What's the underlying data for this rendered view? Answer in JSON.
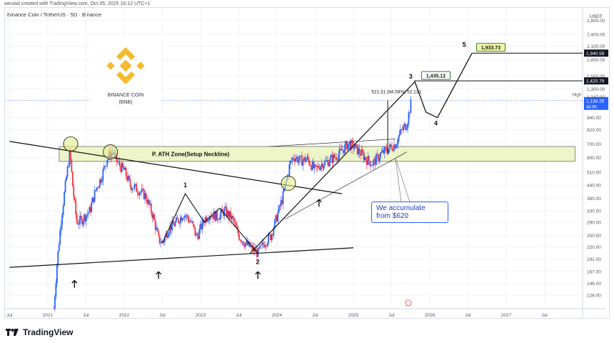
{
  "header": {
    "author_line": "wesiad created with TradingView.com, Oct 05, 2025 16:12 UTC+1",
    "symbol_line": "Binance Coin / TetherUS · 5D · Binance"
  },
  "brand": {
    "name": "TradingView"
  },
  "logo": {
    "name_line1": "BINANCE COIN",
    "name_line2": "(BNB)",
    "color": "#F3BA2F"
  },
  "chart_data": {
    "type": "candlestick",
    "symbol": "Binance Coin / TetherUS",
    "interval": "5D",
    "exchange": "Binance",
    "currency": "USDT",
    "y_scale": "log",
    "ylim": [
      110,
      3200
    ],
    "y_ticks": [
      128,
      146,
      167,
      192,
      220,
      250,
      290,
      330,
      380,
      440,
      510,
      600,
      700,
      820,
      940,
      1147.02,
      1300,
      1500,
      1800,
      2100,
      2400,
      2800
    ],
    "y_tick_labels": [
      "128.00",
      "146.00",
      "167.00",
      "192.00",
      "220.00",
      "250.00",
      "290.00",
      "330.00",
      "380.00",
      "440.00",
      "510.00",
      "600.00",
      "700.00",
      "820.00",
      "940.00",
      "1,147.02",
      "1,300.00",
      "1,500.00",
      "1,800.00",
      "2,100.00",
      "2,400.00",
      "2,800.00"
    ],
    "x_ticks": [
      "Jul",
      "2021",
      "Jul",
      "2022",
      "Jul",
      "2023",
      "Jul",
      "2024",
      "Jul",
      "2025",
      "Jul",
      "2026",
      "Jul",
      "2027",
      "Jul"
    ],
    "x_tick_values": [
      2020.5,
      2021,
      2021.5,
      2022,
      2022.5,
      2023,
      2023.5,
      2024,
      2024.5,
      2025,
      2025.5,
      2026,
      2026.5,
      2027,
      2027.5
    ],
    "xlim": [
      2020.45,
      2028.0
    ],
    "price_path": [
      [
        2021.08,
        110
      ],
      [
        2021.12,
        180
      ],
      [
        2021.18,
        310
      ],
      [
        2021.25,
        500
      ],
      [
        2021.29,
        640
      ],
      [
        2021.33,
        420
      ],
      [
        2021.38,
        290
      ],
      [
        2021.45,
        300
      ],
      [
        2021.55,
        330
      ],
      [
        2021.63,
        420
      ],
      [
        2021.7,
        480
      ],
      [
        2021.78,
        600
      ],
      [
        2021.85,
        640
      ],
      [
        2021.92,
        560
      ],
      [
        2022.0,
        520
      ],
      [
        2022.08,
        440
      ],
      [
        2022.18,
        420
      ],
      [
        2022.28,
        390
      ],
      [
        2022.38,
        310
      ],
      [
        2022.45,
        240
      ],
      [
        2022.5,
        230
      ],
      [
        2022.58,
        270
      ],
      [
        2022.68,
        290
      ],
      [
        2022.78,
        320
      ],
      [
        2022.88,
        290
      ],
      [
        2022.95,
        245
      ],
      [
        2023.05,
        300
      ],
      [
        2023.12,
        320
      ],
      [
        2023.22,
        310
      ],
      [
        2023.32,
        330
      ],
      [
        2023.42,
        300
      ],
      [
        2023.5,
        250
      ],
      [
        2023.58,
        230
      ],
      [
        2023.68,
        215
      ],
      [
        2023.75,
        205
      ],
      [
        2023.83,
        230
      ],
      [
        2023.92,
        250
      ],
      [
        2024.0,
        310
      ],
      [
        2024.08,
        390
      ],
      [
        2024.17,
        560
      ],
      [
        2024.22,
        610
      ],
      [
        2024.3,
        580
      ],
      [
        2024.4,
        590
      ],
      [
        2024.5,
        520
      ],
      [
        2024.58,
        560
      ],
      [
        2024.68,
        580
      ],
      [
        2024.8,
        620
      ],
      [
        2024.93,
        700
      ],
      [
        2025.0,
        680
      ],
      [
        2025.08,
        640
      ],
      [
        2025.17,
        590
      ],
      [
        2025.25,
        560
      ],
      [
        2025.35,
        620
      ],
      [
        2025.45,
        660
      ],
      [
        2025.55,
        700
      ],
      [
        2025.62,
        800
      ],
      [
        2025.7,
        880
      ],
      [
        2025.76,
        1138.28
      ]
    ],
    "lines": [
      {
        "name": "descending-trendline",
        "points": [
          [
            2020.5,
            720
          ],
          [
            2024.85,
            400
          ]
        ]
      },
      {
        "name": "support-line",
        "points": [
          [
            2020.5,
            175
          ],
          [
            2025.0,
            218
          ]
        ]
      },
      {
        "name": "rising-trendline",
        "points": [
          [
            2023.65,
            205
          ],
          [
            2025.8,
            1400
          ]
        ]
      },
      {
        "name": "rising-lower-trendline",
        "points": [
          [
            2024.1,
            300
          ],
          [
            2025.7,
            640
          ]
        ]
      },
      {
        "name": "channel-top-line",
        "points": [
          [
            2023.9,
            680
          ],
          [
            2025.55,
            740
          ]
        ]
      }
    ],
    "projection_path": [
      [
        2025.8,
        1420.79
      ],
      [
        2025.95,
        1000
      ],
      [
        2026.1,
        940
      ],
      [
        2026.55,
        1933.73
      ]
    ],
    "zone": {
      "label": "P. ATH Zone(Setup Neckline)",
      "low": 575,
      "high": 680,
      "from": 2021.15,
      "to": 2027.9
    },
    "horizontal_levels": [
      {
        "value": 1940.59,
        "label": "1,940.59",
        "from": 2026.55
      },
      {
        "value": 1420.79,
        "label": "1,420.79",
        "from": 2025.8
      }
    ],
    "current_price": {
      "value": 1138.28,
      "label": "1,138.28",
      "sub_label": "4d 9h",
      "high_label": "High",
      "high_value": "1,147.02"
    },
    "measure_annotation": {
      "text": "521.31 (84.58%) 52,131",
      "x": 2025.45,
      "from": 620,
      "to": 1140
    },
    "wave_labels": [
      {
        "text": "1",
        "x": 2022.8,
        "y": 430
      },
      {
        "text": "2",
        "x": 2023.75,
        "y": 182
      },
      {
        "text": "3",
        "x": 2025.75,
        "y": 1460
      },
      {
        "text": "4",
        "x": 2026.08,
        "y": 860
      },
      {
        "text": "5",
        "x": 2026.45,
        "y": 2080
      }
    ],
    "target_labels": [
      {
        "text": "1,435.12",
        "x": 2025.93,
        "y": 1480
      },
      {
        "text": "1,933.73",
        "x": 2026.65,
        "y": 2030
      }
    ],
    "up_arrows": [
      [
        2021.35,
        145
      ],
      [
        2022.45,
        160
      ],
      [
        2023.75,
        160
      ],
      [
        2024.55,
        360
      ]
    ],
    "highlight_circles": [
      [
        2021.3,
        700
      ],
      [
        2021.82,
        640
      ],
      [
        2024.15,
        450
      ]
    ],
    "callout": {
      "text_line1": "We accumulate",
      "text_line2": "from $620",
      "target_x": 2025.55,
      "target_y": 600
    }
  }
}
